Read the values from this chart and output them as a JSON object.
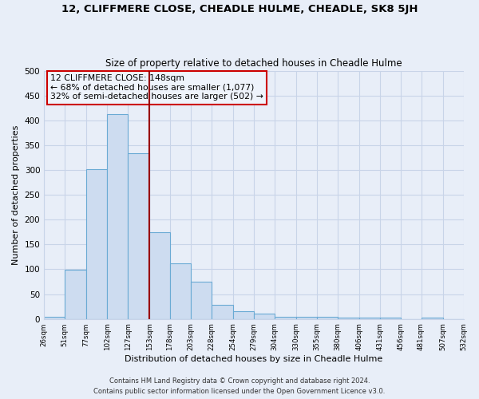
{
  "title": "12, CLIFFMERE CLOSE, CHEADLE HULME, CHEADLE, SK8 5JH",
  "subtitle": "Size of property relative to detached houses in Cheadle Hulme",
  "xlabel": "Distribution of detached houses by size in Cheadle Hulme",
  "ylabel": "Number of detached properties",
  "bin_edges": [
    26,
    51,
    77,
    102,
    127,
    153,
    178,
    203,
    228,
    254,
    279,
    304,
    330,
    355,
    380,
    406,
    431,
    456,
    481,
    507,
    532
  ],
  "bar_heights": [
    5,
    99,
    301,
    413,
    333,
    175,
    112,
    75,
    28,
    15,
    10,
    5,
    4,
    5,
    3,
    2,
    2,
    0,
    2,
    0
  ],
  "bar_color": "#cddcf0",
  "bar_edgecolor": "#6aaad4",
  "vline_x": 153,
  "vline_color": "#990000",
  "annotation_lines": [
    "12 CLIFFMERE CLOSE: 148sqm",
    "← 68% of detached houses are smaller (1,077)",
    "32% of semi-detached houses are larger (502) →"
  ],
  "annotation_box_edgecolor": "#cc0000",
  "annotation_box_facecolor": "#eef3fb",
  "ylim": [
    0,
    500
  ],
  "yticks": [
    0,
    50,
    100,
    150,
    200,
    250,
    300,
    350,
    400,
    450,
    500
  ],
  "footnote1": "Contains HM Land Registry data © Crown copyright and database right 2024.",
  "footnote2": "Contains public sector information licensed under the Open Government Licence v3.0.",
  "background_color": "#e8eef8",
  "grid_color": "#c8d4e8"
}
